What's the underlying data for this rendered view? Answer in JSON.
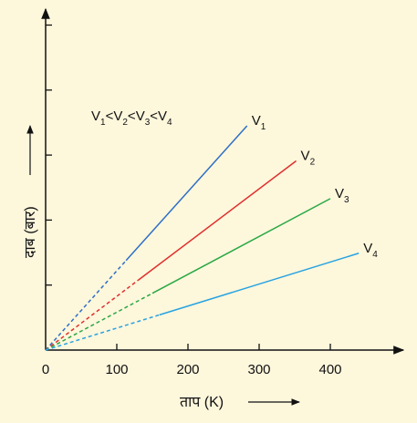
{
  "chart_data": {
    "type": "line",
    "title": "",
    "xlabel": "ताप (K)",
    "ylabel": "दाब (बार)",
    "xlim": [
      0,
      450
    ],
    "ylim": [
      0,
      5.3
    ],
    "x_ticks": [
      0,
      100,
      200,
      300,
      400
    ],
    "y_ticks": [
      1,
      2,
      3,
      4,
      5
    ],
    "ytick_labels_shown": false,
    "grid": false,
    "legend": "none",
    "annotation": {
      "parts": [
        {
          "base": "V",
          "sub": "1"
        },
        {
          "sep": "<"
        },
        {
          "base": "V",
          "sub": "2"
        },
        {
          "sep": "<"
        },
        {
          "base": "V",
          "sub": "3"
        },
        {
          "sep": "<"
        },
        {
          "base": "V",
          "sub": "4"
        }
      ]
    },
    "series": [
      {
        "name": "V",
        "sub": "1",
        "color": "#2f6fc6",
        "extrapolated_to_x": 113,
        "points": [
          [
            0,
            0
          ],
          [
            283,
            3.45
          ]
        ]
      },
      {
        "name": "V",
        "sub": "2",
        "color": "#e0302e",
        "extrapolated_to_x": 130,
        "points": [
          [
            0,
            0
          ],
          [
            352,
            2.91
          ]
        ]
      },
      {
        "name": "V",
        "sub": "3",
        "color": "#2aa845",
        "extrapolated_to_x": 150,
        "points": [
          [
            0,
            0
          ],
          [
            400,
            2.33
          ]
        ]
      },
      {
        "name": "V",
        "sub": "4",
        "color": "#27a3e0",
        "extrapolated_to_x": 160,
        "points": [
          [
            0,
            0
          ],
          [
            440,
            1.49
          ]
        ]
      }
    ]
  }
}
